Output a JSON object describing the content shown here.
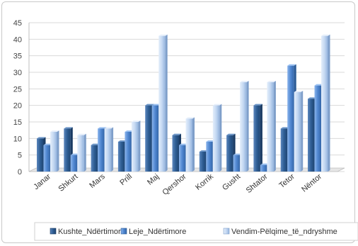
{
  "chart_data": {
    "type": "bar",
    "categories": [
      "Janar",
      "Shkurt",
      "Mars",
      "Prill",
      "Maj",
      "Qershor",
      "Korrik",
      "Gusht",
      "Shtator",
      "Tetor",
      "Nëntor"
    ],
    "series": [
      {
        "name": "Kushte_Ndërtimore",
        "values": [
          10,
          13,
          8,
          9,
          20,
          11,
          6,
          11,
          20,
          13,
          22
        ],
        "color": "#2e5d93"
      },
      {
        "name": "Leje_Ndërtimore",
        "values": [
          8,
          5,
          13,
          12,
          20,
          8,
          9,
          5,
          2,
          32,
          26
        ],
        "color": "#4f86d0"
      },
      {
        "name": "Vendim-Pëlqime_të_ndryshme",
        "values": [
          12,
          11,
          13,
          15,
          41,
          16,
          20,
          27,
          27,
          24,
          41
        ],
        "color": "#b8cfee"
      }
    ],
    "ylim": [
      0,
      45
    ],
    "yticks": [
      0,
      5,
      10,
      15,
      20,
      25,
      30,
      35,
      40,
      45
    ],
    "grid": true,
    "legend_position": "bottom"
  }
}
